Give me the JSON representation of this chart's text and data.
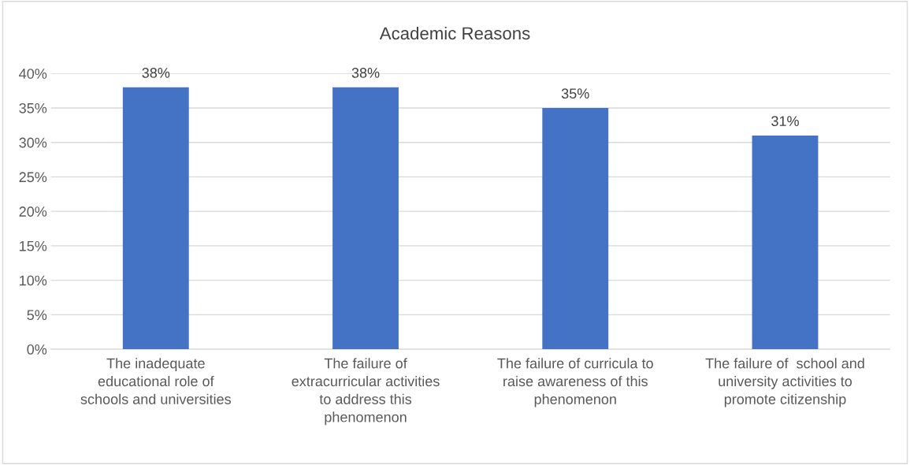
{
  "chart_data": {
    "type": "bar",
    "title": "Academic Reasons",
    "categories": [
      "The inadequate\neducational role of\nschools and universities",
      "The failure of\nextracurricular activities\nto address this\nphenomenon",
      "The failure of curricula to\nraise awareness of this\nphenomenon",
      "The failure of  school and\nuniversity activities to\npromote citizenship"
    ],
    "values": [
      38,
      38,
      35,
      31
    ],
    "value_labels": [
      "38%",
      "38%",
      "35%",
      "31%"
    ],
    "color": "#4472c4",
    "ylim": [
      0,
      40
    ],
    "yticks": [
      {
        "value": 0,
        "label": "0%"
      },
      {
        "value": 5,
        "label": "5%"
      },
      {
        "value": 10,
        "label": "10%"
      },
      {
        "value": 15,
        "label": "15%"
      },
      {
        "value": 20,
        "label": "20%"
      },
      {
        "value": 25,
        "label": "25%"
      },
      {
        "value": 30,
        "label": "30%"
      },
      {
        "value": 35,
        "label": "35%"
      },
      {
        "value": 40,
        "label": "40%"
      }
    ],
    "grid": "y"
  }
}
